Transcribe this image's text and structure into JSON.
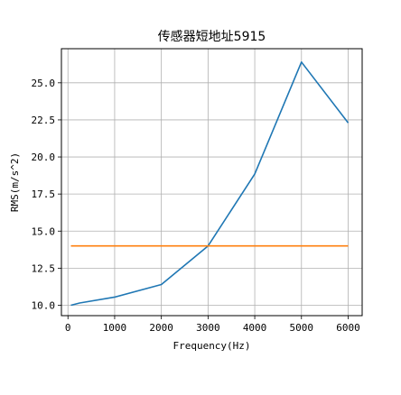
{
  "chart_data": {
    "type": "line",
    "title": "传感器短地址5915",
    "xlabel": "Frequency(Hz)",
    "ylabel": "RMS(m/s^2)",
    "xlim": [
      -140,
      6300
    ],
    "ylim": [
      9.3,
      27.3
    ],
    "xticks": [
      0,
      1000,
      2000,
      3000,
      4000,
      5000,
      6000
    ],
    "yticks": [
      10.0,
      12.5,
      15.0,
      17.5,
      20.0,
      22.5,
      25.0
    ],
    "xtick_labels": [
      "0",
      "1000",
      "2000",
      "3000",
      "4000",
      "5000",
      "6000"
    ],
    "ytick_labels": [
      "10.0",
      "12.5",
      "15.0",
      "17.5",
      "20.0",
      "22.5",
      "25.0"
    ],
    "grid": true,
    "series": [
      {
        "color": "#1f77b4",
        "x": [
          63,
          250,
          1000,
          2000,
          3000,
          4000,
          5000,
          6000
        ],
        "y": [
          10.0,
          10.15,
          10.55,
          11.4,
          14.0,
          18.85,
          26.4,
          22.3
        ]
      },
      {
        "color": "#ff7f0e",
        "x": [
          63,
          6000
        ],
        "y": [
          14.0,
          14.0
        ]
      }
    ]
  }
}
